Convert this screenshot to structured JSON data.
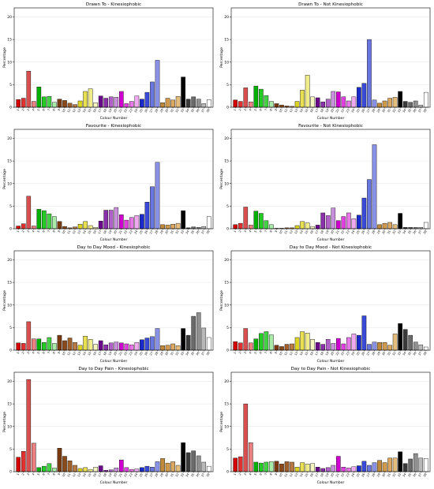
{
  "colours": [
    "#d40000",
    "#e03030",
    "#d94f4f",
    "#ea8080",
    "#f2c0c0",
    "#00b000",
    "#22cc22",
    "#44d044",
    "#70dc70",
    "#a8eca8",
    "#7a3a10",
    "#8b4a1a",
    "#a0602a",
    "#b87a44",
    "#d4a070",
    "#c8c000",
    "#dcd420",
    "#e8e050",
    "#f0ec88",
    "#f8f6c0",
    "#6a0a8a",
    "#8a30aa",
    "#b060c8",
    "#c890dc",
    "#e0b8ec",
    "#d000d0",
    "#e040e0",
    "#e878e8",
    "#f0a8f0",
    "#f8d0f8",
    "#0000aa",
    "#1a2acc",
    "#3a4ad8",
    "#6a76e0",
    "#8a92e8",
    "#c08a3a",
    "#d09a4a",
    "#daa860",
    "#e4bc7c",
    "#eed4a8",
    "#000000",
    "#3a3a3a",
    "#6a6a6a",
    "#909090",
    "#b8b8b8",
    "#d8d8d8",
    "#ffffff"
  ],
  "chart_data": [
    {
      "type": "bar",
      "title": "Drawn To - Kinesiophobic",
      "xlabel": "Colour Number",
      "ylabel": "Percentage",
      "ylim": [
        0,
        22
      ],
      "yticks": [
        0,
        5,
        10,
        15,
        20
      ],
      "categories": [
        "1",
        "2",
        "3",
        "4",
        "5",
        "6",
        "7",
        "8",
        "9",
        "10",
        "11",
        "12",
        "13",
        "14",
        "15",
        "16",
        "17",
        "18",
        "19",
        "20",
        "21",
        "22",
        "23",
        "24",
        "25",
        "26",
        "27",
        "28",
        "29",
        "30",
        "31",
        "32",
        "33",
        "34",
        "35",
        "36",
        "37",
        "38"
      ],
      "values": [
        1.7,
        2.0,
        8.0,
        1.3,
        4.5,
        2.3,
        2.4,
        1.1,
        1.8,
        1.5,
        0.9,
        0.6,
        1.4,
        3.5,
        4.1,
        1.0,
        2.5,
        2.0,
        2.3,
        2.2,
        3.5,
        0.8,
        1.3,
        2.5,
        1.8,
        3.3,
        5.6,
        10.4,
        1.0,
        2.0,
        1.6,
        2.4,
        6.7,
        1.8,
        2.3,
        1.8,
        0.8,
        1.7
      ],
      "colours": [
        "#d40000",
        "#e03030",
        "#d94f4f",
        "#ea8080",
        "#00b000",
        "#22cc22",
        "#44d044",
        "#a8eca8",
        "#7a3a10",
        "#8b4a1a",
        "#a0602a",
        "#b87a44",
        "#dcd420",
        "#e8e050",
        "#f0ec88",
        "#f8f6c0",
        "#6a0a8a",
        "#8a30aa",
        "#b060c8",
        "#c890dc",
        "#d000d0",
        "#e040e0",
        "#e878e8",
        "#f0a8f0",
        "#1a2acc",
        "#3a4ad8",
        "#6a76e0",
        "#8a92e8",
        "#c08a3a",
        "#d09a4a",
        "#daa860",
        "#e4bc7c",
        "#000000",
        "#3a3a3a",
        "#6a6a6a",
        "#909090",
        "#b8b8b8",
        "#ffffff"
      ],
      "grid": "y"
    },
    {
      "type": "bar",
      "title": "Drawn To - Not Kinesiophobic",
      "xlabel": "Colour Number",
      "ylabel": "Percentage",
      "ylim": [
        0,
        22
      ],
      "yticks": [
        0,
        5,
        10,
        15,
        20
      ],
      "categories": [
        "1",
        "2",
        "3",
        "4",
        "5",
        "6",
        "7",
        "8",
        "9",
        "10",
        "11",
        "12",
        "13",
        "14",
        "15",
        "16",
        "17",
        "18",
        "19",
        "20",
        "21",
        "22",
        "23",
        "24",
        "25",
        "26",
        "27",
        "28",
        "29",
        "30",
        "31",
        "32",
        "33",
        "34",
        "35",
        "36",
        "37",
        "38"
      ],
      "values": [
        1.6,
        1.3,
        4.3,
        1.2,
        4.7,
        4.0,
        2.6,
        1.3,
        0.8,
        0.5,
        0.3,
        0.2,
        1.3,
        3.8,
        7.1,
        2.3,
        2.1,
        1.2,
        1.8,
        3.5,
        3.4,
        2.3,
        1.4,
        2.3,
        4.4,
        5.3,
        15.0,
        1.6,
        0.9,
        1.4,
        2.0,
        2.2,
        3.5,
        1.3,
        1.1,
        1.4,
        0.5,
        3.3
      ],
      "colours": [
        "#d40000",
        "#e03030",
        "#d94f4f",
        "#ea8080",
        "#00b000",
        "#22cc22",
        "#44d044",
        "#a8eca8",
        "#7a3a10",
        "#8b4a1a",
        "#a0602a",
        "#b87a44",
        "#dcd420",
        "#e8e050",
        "#f0ec88",
        "#f8f6c0",
        "#6a0a8a",
        "#8a30aa",
        "#b060c8",
        "#c890dc",
        "#d000d0",
        "#e040e0",
        "#e878e8",
        "#f0a8f0",
        "#1a2acc",
        "#3a4ad8",
        "#6a76e0",
        "#8a92e8",
        "#c08a3a",
        "#d09a4a",
        "#daa860",
        "#e4bc7c",
        "#000000",
        "#3a3a3a",
        "#6a6a6a",
        "#909090",
        "#b8b8b8",
        "#ffffff"
      ],
      "grid": "y"
    },
    {
      "type": "bar",
      "title": "Favourite - Kinesiophobic",
      "xlabel": "Colour Number",
      "ylabel": "Percentage",
      "ylim": [
        0,
        22
      ],
      "yticks": [
        0,
        5,
        10,
        15,
        20
      ],
      "categories": [
        "1",
        "2",
        "3",
        "4",
        "5",
        "6",
        "7",
        "8",
        "9",
        "10",
        "11",
        "12",
        "13",
        "14",
        "15",
        "16",
        "17",
        "18",
        "19",
        "20",
        "21",
        "22",
        "23",
        "24",
        "25",
        "26",
        "27",
        "28",
        "29",
        "30",
        "31",
        "32",
        "33",
        "34",
        "35",
        "36",
        "37",
        "38"
      ],
      "values": [
        0.6,
        1.1,
        7.2,
        0.6,
        4.3,
        4.0,
        3.3,
        2.7,
        1.6,
        0.5,
        0.2,
        0.4,
        1.0,
        1.6,
        0.7,
        0.3,
        1.7,
        4.1,
        4.1,
        4.7,
        3.1,
        1.9,
        2.5,
        2.9,
        3.2,
        5.9,
        9.3,
        14.7,
        0.9,
        0.8,
        1.0,
        1.2,
        4.0,
        0.2,
        0.4,
        0.3,
        0.5,
        2.7
      ],
      "colours": [
        "#d40000",
        "#e03030",
        "#d94f4f",
        "#ea8080",
        "#00b000",
        "#22cc22",
        "#44d044",
        "#a8eca8",
        "#7a3a10",
        "#8b4a1a",
        "#a0602a",
        "#b87a44",
        "#dcd420",
        "#e8e050",
        "#f0ec88",
        "#f8f6c0",
        "#6a0a8a",
        "#8a30aa",
        "#b060c8",
        "#c890dc",
        "#d000d0",
        "#e040e0",
        "#e878e8",
        "#f0a8f0",
        "#1a2acc",
        "#3a4ad8",
        "#6a76e0",
        "#8a92e8",
        "#c08a3a",
        "#d09a4a",
        "#daa860",
        "#e4bc7c",
        "#000000",
        "#3a3a3a",
        "#6a6a6a",
        "#909090",
        "#b8b8b8",
        "#ffffff"
      ],
      "grid": "y"
    },
    {
      "type": "bar",
      "title": "Favourite - Not Kinesiophobic",
      "xlabel": "Colour Number",
      "ylabel": "Percentage",
      "ylim": [
        0,
        22
      ],
      "yticks": [
        0,
        5,
        10,
        15,
        20
      ],
      "categories": [
        "1",
        "2",
        "3",
        "4",
        "5",
        "6",
        "7",
        "8",
        "9",
        "10",
        "11",
        "12",
        "13",
        "14",
        "15",
        "16",
        "17",
        "18",
        "19",
        "20",
        "21",
        "22",
        "23",
        "24",
        "25",
        "26",
        "27",
        "28",
        "29",
        "30",
        "31",
        "32",
        "33",
        "34",
        "35",
        "36",
        "37",
        "38"
      ],
      "values": [
        0.9,
        1.2,
        4.8,
        0.8,
        3.9,
        3.4,
        1.8,
        0.9,
        0.1,
        0.1,
        0.2,
        0.2,
        0.7,
        1.6,
        1.3,
        0.5,
        0.8,
        3.5,
        2.9,
        4.6,
        1.8,
        2.7,
        3.5,
        2.2,
        3.0,
        6.8,
        10.9,
        18.6,
        0.9,
        1.2,
        1.4,
        0.9,
        3.4,
        0.3,
        0.3,
        0.3,
        0.3,
        1.4
      ],
      "colours": [
        "#d40000",
        "#e03030",
        "#d94f4f",
        "#ea8080",
        "#00b000",
        "#22cc22",
        "#44d044",
        "#a8eca8",
        "#7a3a10",
        "#8b4a1a",
        "#a0602a",
        "#b87a44",
        "#dcd420",
        "#e8e050",
        "#f0ec88",
        "#f8f6c0",
        "#6a0a8a",
        "#8a30aa",
        "#b060c8",
        "#c890dc",
        "#d000d0",
        "#e040e0",
        "#e878e8",
        "#f0a8f0",
        "#1a2acc",
        "#3a4ad8",
        "#6a76e0",
        "#8a92e8",
        "#c08a3a",
        "#d09a4a",
        "#daa860",
        "#e4bc7c",
        "#000000",
        "#3a3a3a",
        "#6a6a6a",
        "#909090",
        "#b8b8b8",
        "#ffffff"
      ],
      "grid": "y"
    },
    {
      "type": "bar",
      "title": "Day to Day Mood - Kinesiophobic",
      "xlabel": "Colour Number",
      "ylabel": "Percentage",
      "ylim": [
        0,
        22
      ],
      "yticks": [
        0,
        5,
        10,
        15,
        20
      ],
      "categories": [
        "1",
        "2",
        "3",
        "4",
        "5",
        "6",
        "7",
        "8",
        "9",
        "10",
        "11",
        "12",
        "13",
        "14",
        "15",
        "16",
        "17",
        "18",
        "19",
        "20",
        "21",
        "22",
        "23",
        "24",
        "25",
        "26",
        "27",
        "28",
        "29",
        "30",
        "31",
        "32",
        "33",
        "34",
        "35",
        "36",
        "37",
        "38"
      ],
      "values": [
        1.6,
        1.5,
        6.3,
        2.5,
        2.5,
        1.7,
        2.8,
        1.5,
        3.3,
        2.1,
        2.7,
        1.7,
        1.1,
        3.1,
        2.4,
        1.3,
        2.1,
        1.2,
        1.6,
        1.8,
        1.6,
        1.4,
        1.2,
        1.7,
        2.3,
        2.7,
        3.0,
        4.8,
        1.0,
        1.1,
        1.4,
        1.0,
        4.8,
        3.3,
        7.5,
        8.3,
        4.9,
        2.8
      ],
      "colours": [
        "#d40000",
        "#e03030",
        "#d94f4f",
        "#ea8080",
        "#00b000",
        "#22cc22",
        "#44d044",
        "#a8eca8",
        "#7a3a10",
        "#8b4a1a",
        "#a0602a",
        "#b87a44",
        "#dcd420",
        "#e8e050",
        "#f0ec88",
        "#f8f6c0",
        "#6a0a8a",
        "#8a30aa",
        "#b060c8",
        "#c890dc",
        "#d000d0",
        "#e040e0",
        "#e878e8",
        "#f0a8f0",
        "#1a2acc",
        "#3a4ad8",
        "#6a76e0",
        "#8a92e8",
        "#c08a3a",
        "#d09a4a",
        "#daa860",
        "#e4bc7c",
        "#000000",
        "#3a3a3a",
        "#6a6a6a",
        "#909090",
        "#b8b8b8",
        "#ffffff"
      ],
      "grid": "y"
    },
    {
      "type": "bar",
      "title": "Day to Day Mood - Not Kinesiophobic",
      "xlabel": "Colour Number",
      "ylabel": "Percentage",
      "ylim": [
        0,
        22
      ],
      "yticks": [
        0,
        5,
        10,
        15,
        20
      ],
      "categories": [
        "1",
        "2",
        "3",
        "4",
        "5",
        "6",
        "7",
        "8",
        "9",
        "10",
        "11",
        "12",
        "13",
        "14",
        "15",
        "16",
        "17",
        "18",
        "19",
        "20",
        "21",
        "22",
        "23",
        "24",
        "25",
        "26",
        "27",
        "28",
        "29",
        "30",
        "31",
        "32",
        "33",
        "34",
        "35",
        "36",
        "37",
        "38"
      ],
      "values": [
        1.9,
        1.6,
        4.8,
        1.6,
        2.5,
        3.7,
        4.1,
        3.4,
        1.1,
        0.8,
        1.3,
        1.4,
        2.8,
        4.1,
        3.8,
        2.4,
        1.7,
        1.3,
        2.4,
        1.5,
        2.6,
        1.4,
        2.8,
        3.6,
        3.3,
        7.6,
        1.3,
        1.8,
        1.7,
        1.7,
        1.1,
        3.6,
        5.9,
        4.6,
        3.3,
        1.8,
        1.2,
        0.7
      ],
      "colours": [
        "#d40000",
        "#e03030",
        "#d94f4f",
        "#ea8080",
        "#00b000",
        "#22cc22",
        "#44d044",
        "#a8eca8",
        "#7a3a10",
        "#8b4a1a",
        "#a0602a",
        "#b87a44",
        "#dcd420",
        "#e8e050",
        "#f0ec88",
        "#f8f6c0",
        "#6a0a8a",
        "#8a30aa",
        "#b060c8",
        "#c890dc",
        "#d000d0",
        "#e040e0",
        "#e878e8",
        "#f0a8f0",
        "#1a2acc",
        "#3a4ad8",
        "#6a76e0",
        "#8a92e8",
        "#c08a3a",
        "#d09a4a",
        "#daa860",
        "#e4bc7c",
        "#000000",
        "#3a3a3a",
        "#6a6a6a",
        "#909090",
        "#b8b8b8",
        "#ffffff"
      ],
      "grid": "y"
    },
    {
      "type": "bar",
      "title": "Day to Day Pain - Kinesiophobic",
      "xlabel": "Colour Number",
      "ylabel": "Percentage",
      "ylim": [
        0,
        22
      ],
      "yticks": [
        0,
        5,
        10,
        15,
        20
      ],
      "categories": [
        "1",
        "2",
        "3",
        "4",
        "5",
        "6",
        "7",
        "8",
        "9",
        "10",
        "11",
        "12",
        "13",
        "14",
        "15",
        "16",
        "17",
        "18",
        "19",
        "20",
        "21",
        "22",
        "23",
        "24",
        "25",
        "26",
        "27",
        "28",
        "29",
        "30",
        "31",
        "32",
        "33",
        "34",
        "35",
        "36",
        "37",
        "38"
      ],
      "values": [
        3.2,
        4.5,
        20.4,
        6.3,
        0.9,
        1.2,
        1.8,
        0.8,
        5.2,
        3.4,
        2.4,
        1.4,
        0.7,
        0.9,
        0.5,
        1.0,
        1.3,
        0.3,
        0.4,
        0.8,
        2.6,
        0.9,
        0.5,
        0.6,
        0.9,
        1.2,
        1.0,
        2.2,
        2.9,
        1.9,
        2.2,
        1.4,
        6.4,
        4.2,
        4.6,
        3.5,
        2.1,
        1.2
      ],
      "colours": [
        "#d40000",
        "#e03030",
        "#d94f4f",
        "#ea8080",
        "#00b000",
        "#22cc22",
        "#44d044",
        "#a8eca8",
        "#7a3a10",
        "#8b4a1a",
        "#a0602a",
        "#b87a44",
        "#dcd420",
        "#e8e050",
        "#f0ec88",
        "#f8f6c0",
        "#6a0a8a",
        "#8a30aa",
        "#b060c8",
        "#c890dc",
        "#d000d0",
        "#e040e0",
        "#e878e8",
        "#f0a8f0",
        "#1a2acc",
        "#3a4ad8",
        "#6a76e0",
        "#8a92e8",
        "#c08a3a",
        "#d09a4a",
        "#daa860",
        "#e4bc7c",
        "#000000",
        "#3a3a3a",
        "#6a6a6a",
        "#909090",
        "#b8b8b8",
        "#ffffff"
      ],
      "grid": "y"
    },
    {
      "type": "bar",
      "title": "Day to Day Pain - Not Kinesiophobic",
      "xlabel": "Colour Number",
      "ylabel": "Percentage",
      "ylim": [
        0,
        22
      ],
      "yticks": [
        0,
        5,
        10,
        15,
        20
      ],
      "categories": [
        "1",
        "2",
        "3",
        "4",
        "5",
        "6",
        "7",
        "8",
        "9",
        "10",
        "11",
        "12",
        "13",
        "14",
        "15",
        "16",
        "17",
        "18",
        "19",
        "20",
        "21",
        "22",
        "23",
        "24",
        "25",
        "26",
        "27",
        "28",
        "29",
        "30",
        "31",
        "32",
        "33",
        "34",
        "35",
        "36",
        "37",
        "38"
      ],
      "values": [
        3.0,
        3.3,
        15.0,
        6.4,
        2.1,
        1.9,
        2.1,
        2.2,
        2.3,
        1.7,
        2.2,
        2.1,
        1.0,
        2.0,
        1.7,
        1.8,
        1.0,
        0.7,
        0.9,
        1.4,
        3.4,
        1.0,
        0.8,
        1.1,
        1.3,
        2.3,
        1.4,
        2.0,
        2.5,
        2.0,
        3.0,
        3.0,
        4.4,
        1.8,
        2.8,
        4.0,
        3.0,
        2.9
      ],
      "colours": [
        "#d40000",
        "#e03030",
        "#d94f4f",
        "#ea8080",
        "#00b000",
        "#22cc22",
        "#44d044",
        "#a8eca8",
        "#7a3a10",
        "#8b4a1a",
        "#a0602a",
        "#b87a44",
        "#dcd420",
        "#e8e050",
        "#f0ec88",
        "#f8f6c0",
        "#6a0a8a",
        "#8a30aa",
        "#b060c8",
        "#c890dc",
        "#d000d0",
        "#e040e0",
        "#e878e8",
        "#f0a8f0",
        "#1a2acc",
        "#3a4ad8",
        "#6a76e0",
        "#8a92e8",
        "#c08a3a",
        "#d09a4a",
        "#daa860",
        "#e4bc7c",
        "#000000",
        "#3a3a3a",
        "#6a6a6a",
        "#909090",
        "#b8b8b8",
        "#ffffff"
      ],
      "grid": "y"
    }
  ]
}
